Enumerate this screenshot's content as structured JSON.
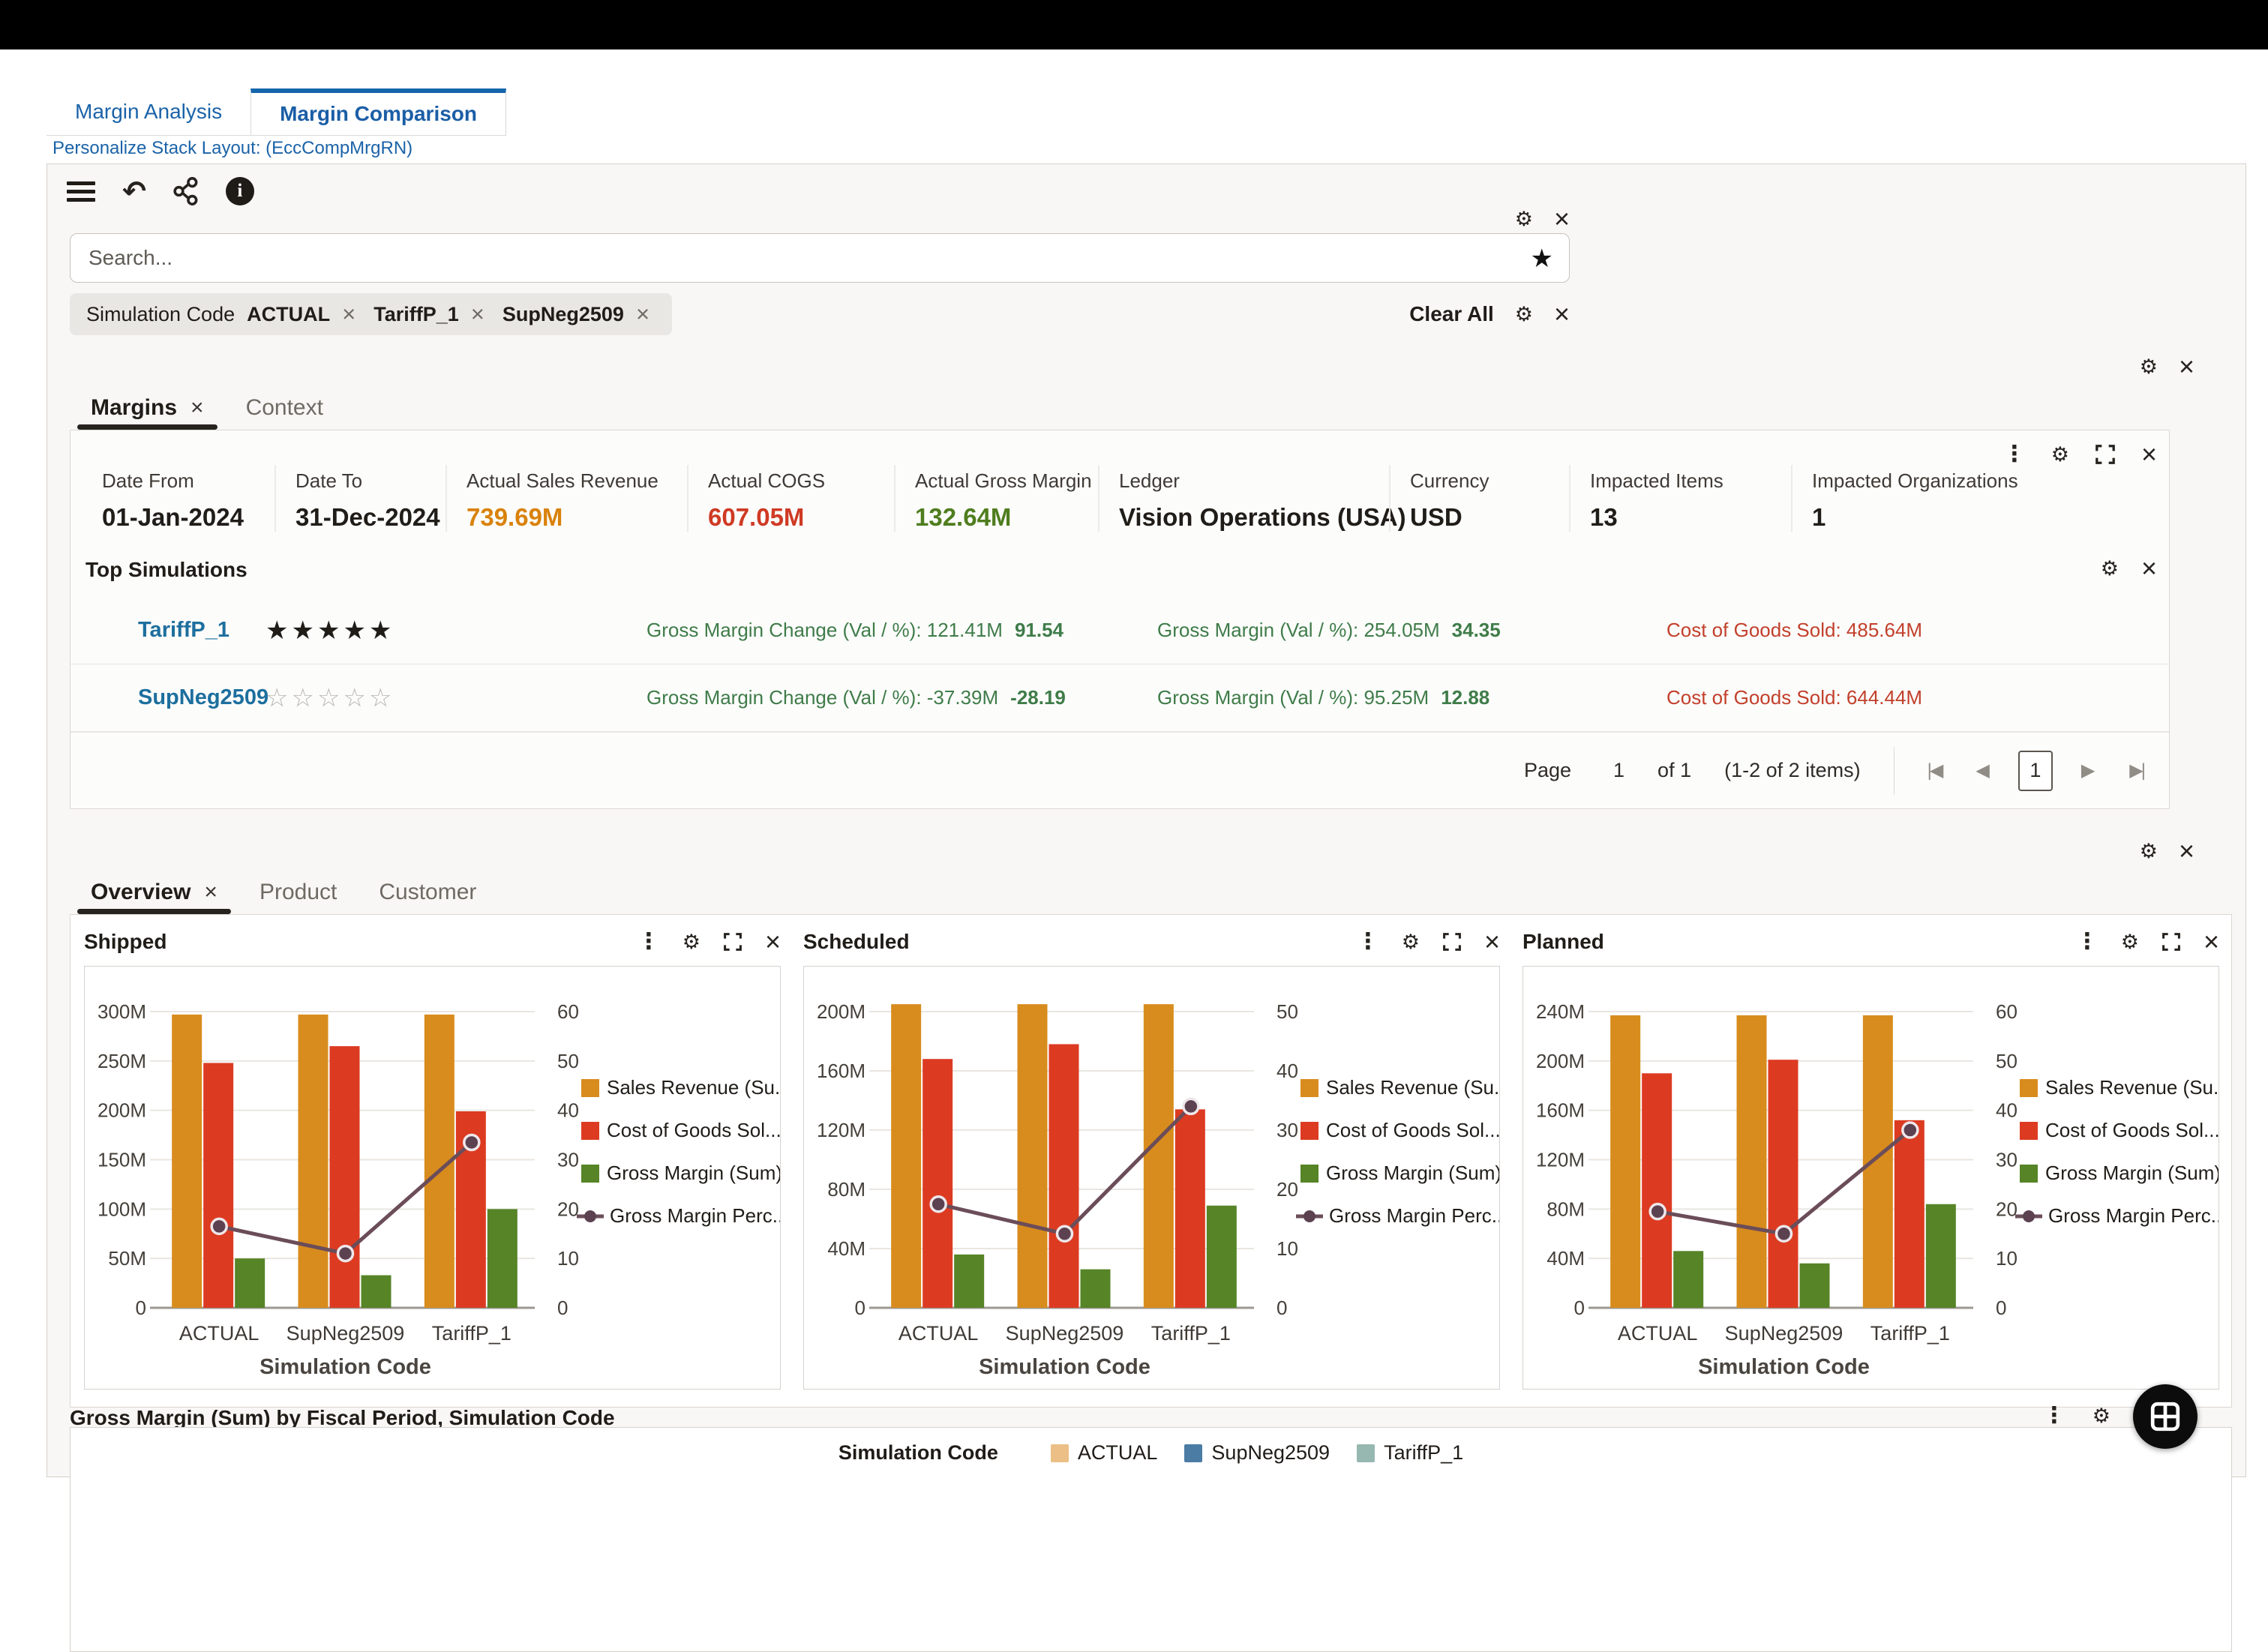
{
  "app_tabs": [
    {
      "label": "Margin Analysis"
    },
    {
      "label": "Margin Comparison"
    }
  ],
  "personalize_link": "Personalize Stack Layout: (EccCompMrgRN)",
  "icons": {
    "gear": "⚙",
    "close": "×",
    "overflow": "⋮",
    "undo": "↶",
    "info": "i",
    "favorite_star": "★",
    "star_filled": "★",
    "star_empty": "☆",
    "page_first": "|◀",
    "page_prev": "◀",
    "page_next": "▶",
    "page_last": "▶|"
  },
  "search": {
    "placeholder": "Search..."
  },
  "filters": {
    "group_label": "Simulation Code",
    "values": [
      "ACTUAL",
      "TariffP_1",
      "SupNeg2509"
    ],
    "clear_all_label": "Clear All"
  },
  "margins_tabs": {
    "active": "Margins",
    "inactive": "Context"
  },
  "summary": {
    "fields": [
      {
        "label": "Date From",
        "value": "01-Jan-2024",
        "color": "#201c18"
      },
      {
        "label": "Date To",
        "value": "31-Dec-2024",
        "color": "#201c18"
      },
      {
        "label": "Actual Sales Revenue",
        "value": "739.69M",
        "color": "#d9820a"
      },
      {
        "label": "Actual COGS",
        "value": "607.05M",
        "color": "#cf3a24"
      },
      {
        "label": "Actual Gross Margin",
        "value": "132.64M",
        "color": "#4f7d1e"
      },
      {
        "label": "Ledger",
        "value": "Vision Operations (USA)",
        "color": "#201c18"
      },
      {
        "label": "Currency",
        "value": "USD",
        "color": "#201c18"
      },
      {
        "label": "Impacted Items",
        "value": "13",
        "color": "#201c18"
      },
      {
        "label": "Impacted Organizations",
        "value": "1",
        "color": "#201c18"
      }
    ]
  },
  "top_simulations": {
    "title": "Top Simulations",
    "rows": [
      {
        "name": "TariffP_1",
        "stars": 5,
        "change_text": "Gross Margin Change (Val / %): 121.41M",
        "change_pct": "91.54",
        "margin_text": "Gross Margin (Val / %): 254.05M",
        "margin_pct": "34.35",
        "cogs_text": "Cost of Goods Sold: 485.64M"
      },
      {
        "name": "SupNeg2509",
        "stars": 0,
        "change_text": "Gross Margin Change (Val / %): -37.39M",
        "change_pct": "-28.19",
        "margin_text": "Gross Margin (Val / %): 95.25M",
        "margin_pct": "12.88",
        "cogs_text": "Cost of Goods Sold: 644.44M"
      }
    ]
  },
  "pagination": {
    "page_label": "Page",
    "current": "1",
    "of_label": "of 1",
    "items_label": "(1-2 of 2 items)"
  },
  "view_tabs": {
    "active": "Overview",
    "tab2": "Product",
    "tab3": "Customer"
  },
  "chart_data": [
    {
      "type": "combo-bar-line",
      "title": "Shipped",
      "categories": [
        "ACTUAL",
        "SupNeg2509",
        "TariffP_1"
      ],
      "xlabel": "Simulation Code",
      "left_axis": {
        "max": 300,
        "unit": "M",
        "labels": [
          "300M",
          "250M",
          "200M",
          "150M",
          "100M",
          "50M",
          "0"
        ]
      },
      "right_axis": {
        "max": 60,
        "labels": [
          "60",
          "50",
          "40",
          "30",
          "20",
          "10",
          "0"
        ]
      },
      "series": [
        {
          "name": "Sales Revenue (Su...",
          "color": "#d88c1d",
          "values": [
            297,
            297,
            297
          ]
        },
        {
          "name": "Cost of Goods Sol...",
          "color": "#dc3b22",
          "values": [
            248,
            265,
            199
          ]
        },
        {
          "name": "Gross Margin (Sum)",
          "color": "#568427",
          "values": [
            50,
            33,
            100
          ]
        }
      ],
      "line_series": {
        "name": "Gross Margin Perc...",
        "color": "#6b4d59",
        "values": [
          16.5,
          11,
          33.5
        ]
      },
      "grid": true,
      "legend_position": "right"
    },
    {
      "type": "combo-bar-line",
      "title": "Scheduled",
      "categories": [
        "ACTUAL",
        "SupNeg2509",
        "TariffP_1"
      ],
      "xlabel": "Simulation Code",
      "left_axis": {
        "max": 200,
        "unit": "M",
        "labels": [
          "200M",
          "160M",
          "120M",
          "80M",
          "40M",
          "0"
        ]
      },
      "right_axis": {
        "max": 50,
        "labels": [
          "50",
          "40",
          "30",
          "20",
          "10",
          "0"
        ]
      },
      "series": [
        {
          "name": "Sales Revenue (Su...",
          "color": "#d88c1d",
          "values": [
            205,
            205,
            205
          ]
        },
        {
          "name": "Cost of Goods Sol...",
          "color": "#dc3b22",
          "values": [
            168,
            178,
            134
          ]
        },
        {
          "name": "Gross Margin (Sum)",
          "color": "#568427",
          "values": [
            36,
            26,
            69
          ]
        }
      ],
      "line_series": {
        "name": "Gross Margin Perc...",
        "color": "#6b4d59",
        "values": [
          17.5,
          12.5,
          34
        ]
      },
      "grid": true,
      "legend_position": "right"
    },
    {
      "type": "combo-bar-line",
      "title": "Planned",
      "categories": [
        "ACTUAL",
        "SupNeg2509",
        "TariffP_1"
      ],
      "xlabel": "Simulation Code",
      "left_axis": {
        "max": 240,
        "unit": "M",
        "labels": [
          "240M",
          "200M",
          "160M",
          "120M",
          "80M",
          "40M",
          "0"
        ]
      },
      "right_axis": {
        "max": 60,
        "labels": [
          "60",
          "50",
          "40",
          "30",
          "20",
          "10",
          "0"
        ]
      },
      "series": [
        {
          "name": "Sales Revenue (Su...",
          "color": "#d88c1d",
          "values": [
            237,
            237,
            237
          ]
        },
        {
          "name": "Cost of Goods Sol...",
          "color": "#dc3b22",
          "values": [
            190,
            201,
            152
          ]
        },
        {
          "name": "Gross Margin (Sum)",
          "color": "#568427",
          "values": [
            46,
            36,
            84
          ]
        }
      ],
      "line_series": {
        "name": "Gross Margin Perc...",
        "color": "#6b4d59",
        "values": [
          19.5,
          15,
          36
        ]
      },
      "grid": true,
      "legend_position": "right"
    },
    {
      "type": "bar",
      "title": "Gross Margin (Sum) by Fiscal Period, Simulation Code",
      "legend_title": "Simulation Code",
      "legend": [
        {
          "name": "ACTUAL",
          "color": "#ebbf85"
        },
        {
          "name": "SupNeg2509",
          "color": "#4b7ca4"
        },
        {
          "name": "TariffP_1",
          "color": "#96b8b1"
        }
      ]
    }
  ],
  "bottom_section": {
    "title": "Gross Margin (Sum) by Fiscal Period, Simulation Code",
    "legend_title": "Simulation Code"
  }
}
